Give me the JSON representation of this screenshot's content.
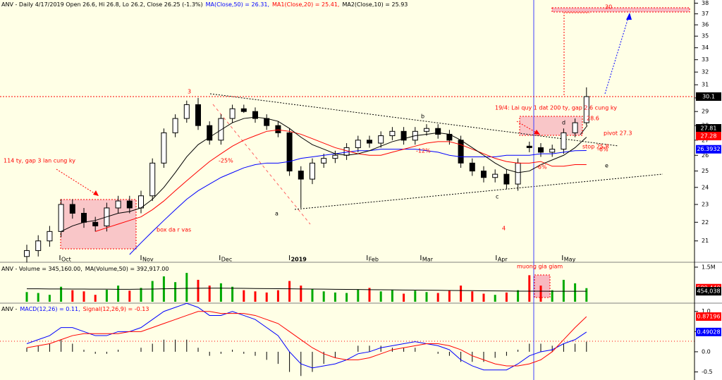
{
  "chart_data": [
    {
      "type": "candlestick",
      "title": "ANV - Daily 4/17/2019 Open 26.6, Hi 26.8, Lo 26.2, Close 26.25 (-1.3%)",
      "open": [
        20.2,
        20.5,
        21.0,
        21.5,
        23.0,
        22.5,
        22.0,
        21.8,
        22.8,
        23.2,
        22.8,
        23.5,
        25.5,
        27.5,
        28.5,
        29.5,
        28.0,
        27.0,
        28.5,
        29.2,
        29.0,
        28.5,
        28.0,
        27.5,
        25.0,
        24.5,
        25.5,
        25.8,
        26.0,
        26.5,
        27.0,
        26.8,
        27.3,
        27.6,
        27.0,
        27.6,
        27.8,
        27.4,
        27.0,
        25.5,
        25.0,
        24.6,
        24.8,
        24.2,
        26.6,
        26.5,
        26.2,
        26.4,
        27.5,
        28.2
      ],
      "high": [
        20.8,
        21.3,
        21.8,
        23.3,
        23.3,
        22.8,
        22.3,
        23.1,
        23.5,
        23.5,
        23.8,
        25.8,
        27.8,
        28.8,
        29.8,
        30.0,
        28.3,
        28.8,
        29.5,
        29.5,
        29.3,
        28.8,
        28.3,
        27.8,
        25.3,
        25.8,
        26.1,
        26.3,
        26.8,
        27.3,
        27.3,
        27.6,
        27.9,
        27.9,
        27.9,
        28.1,
        28.1,
        27.7,
        27.3,
        25.8,
        25.3,
        25.1,
        25.1,
        25.8,
        26.9,
        26.8,
        26.7,
        27.8,
        28.5,
        30.8
      ],
      "low": [
        19.9,
        20.2,
        20.7,
        21.2,
        22.2,
        21.7,
        21.5,
        21.5,
        22.5,
        22.5,
        22.5,
        23.2,
        25.2,
        27.2,
        28.2,
        27.7,
        26.7,
        26.7,
        28.2,
        28.9,
        28.2,
        27.7,
        27.2,
        24.7,
        22.8,
        24.2,
        25.2,
        25.5,
        25.7,
        26.2,
        26.5,
        26.5,
        27.0,
        26.7,
        26.7,
        27.3,
        27.1,
        26.7,
        25.2,
        24.7,
        24.3,
        24.3,
        23.9,
        23.8,
        26.2,
        25.9,
        25.9,
        26.1,
        27.2,
        28.0
      ],
      "close": [
        20.5,
        21.0,
        21.5,
        23.0,
        22.5,
        22.0,
        21.8,
        22.8,
        23.2,
        22.8,
        23.5,
        25.5,
        27.5,
        28.5,
        29.5,
        28.0,
        27.0,
        28.5,
        29.2,
        29.0,
        28.5,
        28.0,
        27.5,
        25.0,
        24.5,
        25.5,
        25.8,
        26.0,
        26.5,
        27.0,
        26.8,
        27.3,
        27.6,
        27.0,
        27.6,
        27.8,
        27.4,
        27.0,
        25.5,
        25.0,
        24.6,
        24.8,
        24.2,
        25.5,
        26.5,
        26.2,
        26.4,
        27.5,
        28.2,
        30.1
      ],
      "up_color": "#ffffff",
      "down_color": "#000000",
      "series": [
        {
          "name": "MA(Close,50) = 26.31,",
          "color": "#0000ff",
          "values": [
            null,
            null,
            null,
            null,
            null,
            null,
            null,
            null,
            null,
            20.3,
            20.9,
            21.5,
            22.1,
            22.7,
            23.3,
            23.8,
            24.2,
            24.6,
            24.9,
            25.2,
            25.4,
            25.5,
            25.5,
            25.6,
            25.8,
            25.9,
            26.0,
            26.1,
            26.2,
            26.3,
            26.3,
            26.4,
            26.4,
            26.4,
            26.4,
            26.3,
            26.2,
            26.0,
            25.9,
            25.9,
            25.9,
            25.9,
            26.0,
            26.0,
            26.0,
            26.1,
            26.1,
            26.2,
            26.3,
            26.31
          ]
        },
        {
          "name": "MA1(Close,20) = 25.41,",
          "color": "#ff0000",
          "values": [
            null,
            null,
            null,
            null,
            null,
            null,
            21.5,
            21.7,
            21.9,
            22.1,
            22.3,
            22.7,
            23.2,
            23.8,
            24.4,
            25.0,
            25.6,
            26.1,
            26.6,
            27.0,
            27.3,
            27.6,
            27.7,
            27.6,
            27.4,
            27.1,
            26.8,
            26.5,
            26.3,
            26.1,
            26.0,
            26.0,
            26.2,
            26.4,
            26.6,
            26.8,
            26.9,
            26.9,
            26.7,
            26.4,
            26.1,
            25.8,
            25.6,
            25.5,
            25.5,
            25.6,
            25.3,
            25.3,
            25.4,
            25.4
          ]
        },
        {
          "name": "MA2(Close,10) = 25.93",
          "color": "#000000",
          "values": [
            null,
            null,
            null,
            21.5,
            21.8,
            22.0,
            22.1,
            22.3,
            22.5,
            22.6,
            22.8,
            23.3,
            24.0,
            24.9,
            25.9,
            26.7,
            27.2,
            27.7,
            28.2,
            28.5,
            28.6,
            28.5,
            28.3,
            27.8,
            27.2,
            26.7,
            26.4,
            26.1,
            26.0,
            26.1,
            26.3,
            26.6,
            26.9,
            27.1,
            27.3,
            27.4,
            27.5,
            27.4,
            27.0,
            26.5,
            26.0,
            25.5,
            25.1,
            24.9,
            25.0,
            25.4,
            25.7,
            26.0,
            26.5,
            27.2
          ]
        }
      ],
      "ylim": [
        20.3,
        38.3
      ],
      "log_scale": true,
      "yticks": [
        21,
        22,
        23,
        24,
        25,
        26,
        27,
        28,
        29,
        30,
        31,
        32,
        33,
        34,
        35,
        36,
        37,
        38
      ],
      "xticks": [
        {
          "value": 2.9,
          "label": "Oct"
        },
        {
          "value": 10,
          "label": "Nov"
        },
        {
          "value": 16.9,
          "label": "Dec"
        },
        {
          "value": 23,
          "label": "2019"
        },
        {
          "value": 29.8,
          "label": "Feb"
        },
        {
          "value": 34.5,
          "label": "Mar"
        },
        {
          "value": 41.1,
          "label": "Apr"
        },
        {
          "value": 46.9,
          "label": "May"
        }
      ],
      "markers": [
        {
          "value": 30.1,
          "label": "30.1",
          "color": "#000000"
        },
        {
          "value": 27.81,
          "label": "27.81",
          "color": "#000000"
        },
        {
          "value": 27.28,
          "label": "27.28",
          "color": "#ff0000"
        },
        {
          "value": 26.3932,
          "label": "26.3932",
          "color": "#0000ff"
        }
      ],
      "annotations": [
        "3",
        "b",
        "c",
        "a",
        "4",
        "e",
        "-25%",
        "-12%",
        "-6%",
        "-6%",
        "114 ty, gap 3 lan cung ky",
        "box da r vas",
        "19/4: Lai quy 1 dat 200 ty, gap 2.6 cung ky",
        "28.6",
        "pivot 27.3",
        "stop 25.8",
        "30",
        "d"
      ]
    },
    {
      "type": "bar",
      "title": "ANV - Volume = 345,160.00,",
      "values": [
        420000,
        380000,
        300000,
        650000,
        500000,
        450000,
        300000,
        520000,
        700000,
        480000,
        600000,
        900000,
        1100000,
        850000,
        1250000,
        950000,
        700000,
        800000,
        650000,
        500000,
        450000,
        400000,
        500000,
        900000,
        700000,
        550000,
        450000,
        400000,
        380000,
        520000,
        600000,
        450000,
        500000,
        350000,
        480000,
        420000,
        380000,
        500000,
        700000,
        450000,
        350000,
        300000,
        400000,
        500000,
        1150000,
        700000,
        500000,
        950000,
        800000,
        589440
      ],
      "up_color": "#00aa00",
      "down_color": "#ff0000",
      "series": [
        {
          "name": "MA(Volume,50) = 392,917.00",
          "color": "#000000",
          "values": [
            560000,
            560000,
            555000,
            555000,
            550000,
            550000,
            545000,
            545000,
            540000,
            540000,
            545000,
            550000,
            560000,
            570000,
            580000,
            585000,
            590000,
            590000,
            585000,
            580000,
            575000,
            570000,
            565000,
            560000,
            555000,
            550000,
            545000,
            540000,
            535000,
            530000,
            525000,
            520000,
            515000,
            510000,
            505000,
            500000,
            495000,
            490000,
            485000,
            480000,
            475000,
            470000,
            465000,
            460000,
            460000,
            458000,
            456000,
            455000,
            454500,
            454038
          ]
        }
      ],
      "ylim": [
        0,
        1620000
      ],
      "yticks": [
        {
          "value": 1500000,
          "label": "1.5M"
        }
      ],
      "markers": [
        {
          "value": 589440,
          "label": "589,440",
          "color": "#ff0000"
        },
        {
          "value": 454038,
          "label": "454,038",
          "color": "#000000"
        }
      ],
      "annotations": [
        "muong gia giam"
      ]
    },
    {
      "type": "line",
      "title": "ANV -",
      "series": [
        {
          "name": "MACD(12,26) = 0.11,",
          "color": "#0000ff",
          "values": [
            0.2,
            0.3,
            0.4,
            0.6,
            0.6,
            0.5,
            0.4,
            0.4,
            0.5,
            0.5,
            0.6,
            0.8,
            1.0,
            1.1,
            1.2,
            1.1,
            0.9,
            0.9,
            1.0,
            0.9,
            0.8,
            0.6,
            0.4,
            0.0,
            -0.3,
            -0.4,
            -0.35,
            -0.3,
            -0.2,
            -0.05,
            0.0,
            0.1,
            0.15,
            0.2,
            0.25,
            0.2,
            0.15,
            0.05,
            -0.2,
            -0.35,
            -0.45,
            -0.45,
            -0.45,
            -0.3,
            -0.1,
            0.0,
            0.05,
            0.2,
            0.3,
            0.49
          ]
        },
        {
          "name": "Signal(12,26,9) = -0.13",
          "color": "#ff0000",
          "values": [
            0.1,
            0.15,
            0.2,
            0.3,
            0.4,
            0.45,
            0.45,
            0.45,
            0.45,
            0.5,
            0.5,
            0.6,
            0.7,
            0.8,
            0.9,
            1.0,
            1.0,
            0.95,
            0.95,
            0.95,
            0.9,
            0.8,
            0.7,
            0.5,
            0.3,
            0.1,
            -0.05,
            -0.15,
            -0.2,
            -0.2,
            -0.15,
            -0.05,
            0.05,
            0.1,
            0.15,
            0.2,
            0.2,
            0.15,
            0.05,
            -0.1,
            -0.2,
            -0.3,
            -0.35,
            -0.35,
            -0.3,
            -0.2,
            0.0,
            0.3,
            0.6,
            0.87
          ]
        }
      ],
      "histogram": [
        0.1,
        0.15,
        0.2,
        0.3,
        0.2,
        0.05,
        -0.05,
        -0.05,
        0.05,
        0,
        0.1,
        0.2,
        0.3,
        0.3,
        0.3,
        0.1,
        -0.1,
        -0.05,
        0.05,
        -0.05,
        -0.1,
        -0.2,
        -0.3,
        -0.5,
        -0.6,
        -0.5,
        -0.3,
        -0.15,
        0,
        0.15,
        0.15,
        0.15,
        0.1,
        0.1,
        0.1,
        0,
        -0.05,
        -0.1,
        -0.25,
        -0.25,
        -0.25,
        -0.15,
        -0.1,
        0.05,
        0.2,
        0.2,
        0.15,
        0.2,
        0.2,
        0.25
      ],
      "ylim": [
        -0.7,
        1.17
      ],
      "yticks": [
        {
          "value": 1,
          "label": "1.0"
        },
        {
          "value": 0.5,
          "label": "0.5"
        },
        {
          "value": 0,
          "label": "0.0"
        },
        {
          "value": -0.5,
          "label": "-0.5"
        }
      ],
      "markers": [
        {
          "value": 0.87196,
          "label": "0.87196",
          "color": "#ff0000"
        },
        {
          "value": 0.49028,
          "label": "0.49028",
          "color": "#0000ff"
        }
      ]
    }
  ]
}
